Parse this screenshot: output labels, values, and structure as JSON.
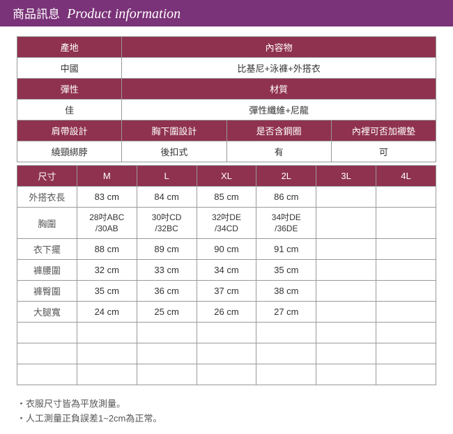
{
  "header": {
    "zh": "商品訊息",
    "en": "Product information"
  },
  "colors": {
    "banner": "#7a3278",
    "tableHeader": "#8f324f",
    "border": "#999999",
    "text": "#333333"
  },
  "info": {
    "r1h": [
      "產地",
      "內容物"
    ],
    "r1v": [
      "中國",
      "比基尼+泳褲+外搭衣"
    ],
    "r2h": [
      "彈性",
      "材質"
    ],
    "r2v": [
      "佳",
      "彈性纖維+尼龍"
    ],
    "r3h": [
      "肩帶設計",
      "胸下圍設計",
      "是否含鋼圈",
      "內裡可否加襯墊"
    ],
    "r3v": [
      "繞頸綁脖",
      "後扣式",
      "有",
      "可"
    ]
  },
  "sizes": {
    "headers": [
      "尺寸",
      "M",
      "L",
      "XL",
      "2L",
      "3L",
      "4L"
    ],
    "rows": [
      {
        "label": "外搭衣長",
        "vals": [
          "83 cm",
          "84 cm",
          "85 cm",
          "86 cm",
          "",
          ""
        ]
      },
      {
        "label": "胸圍",
        "vals": [
          "28吋ABC\n/30AB",
          "30吋CD\n/32BC",
          "32吋DE\n/34CD",
          "34吋DE\n/36DE",
          "",
          ""
        ],
        "bust": true
      },
      {
        "label": "衣下擺",
        "vals": [
          "88 cm",
          "89 cm",
          "90 cm",
          "91 cm",
          "",
          ""
        ]
      },
      {
        "label": "褲腰圍",
        "vals": [
          "32 cm",
          "33 cm",
          "34 cm",
          "35 cm",
          "",
          ""
        ]
      },
      {
        "label": "褲臀圍",
        "vals": [
          "35 cm",
          "36 cm",
          "37 cm",
          "38 cm",
          "",
          ""
        ]
      },
      {
        "label": "大腿寬",
        "vals": [
          "24 cm",
          "25 cm",
          "26 cm",
          "27 cm",
          "",
          ""
        ]
      },
      {
        "label": "",
        "vals": [
          "",
          "",
          "",
          "",
          "",
          ""
        ]
      },
      {
        "label": "",
        "vals": [
          "",
          "",
          "",
          "",
          "",
          ""
        ]
      },
      {
        "label": "",
        "vals": [
          "",
          "",
          "",
          "",
          "",
          ""
        ]
      }
    ]
  },
  "notes": [
    "・衣服尺寸皆為平放測量。",
    "・人工測量正負誤差1~2cm為正常。"
  ]
}
